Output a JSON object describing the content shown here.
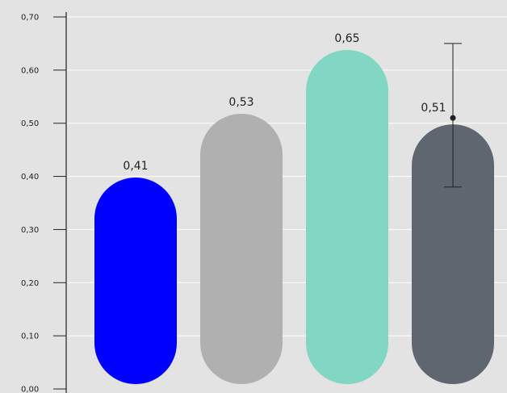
{
  "chart_data": {
    "type": "bar",
    "title": "",
    "xlabel": "",
    "ylabel": "",
    "ylim": [
      0,
      0.7
    ],
    "y_ticks": [
      "0,00",
      "0,10",
      "0,20",
      "0,30",
      "0,40",
      "0,50",
      "0,60",
      "0,70"
    ],
    "grid": true,
    "legend": "none",
    "values": [
      0.41,
      0.53,
      0.65,
      0.51
    ],
    "value_labels": [
      "0,41",
      "0,53",
      "0,65",
      "0,51"
    ],
    "colors": [
      "#0000ff",
      "#b0b0b0",
      "#82d6c4",
      "#5e666f"
    ],
    "error_bars": [
      null,
      null,
      null,
      {
        "low": 0.38,
        "high": 0.65
      }
    ]
  },
  "colors": {
    "background": "#e3e3e3",
    "grid": "#ffffff",
    "axis": "#222222"
  }
}
